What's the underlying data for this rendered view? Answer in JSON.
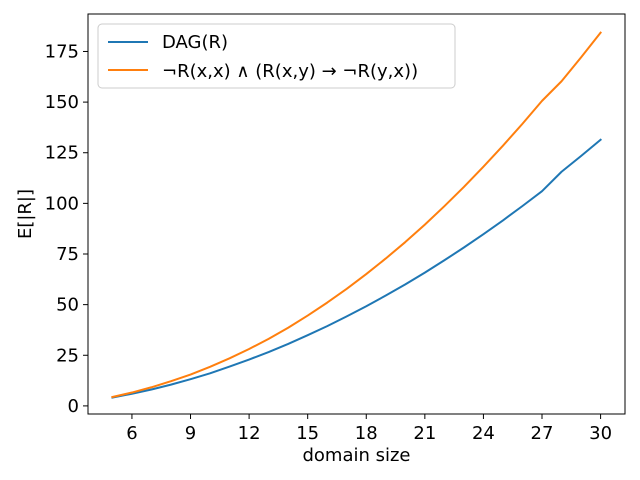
{
  "chart_data": {
    "type": "line",
    "xlabel": "domain size",
    "ylabel": "E[|R|]",
    "xlim": [
      3.75,
      31.25
    ],
    "ylim": [
      -4.0,
      193.5
    ],
    "xticks": [
      6,
      9,
      12,
      15,
      18,
      21,
      24,
      27,
      30
    ],
    "yticks": [
      0,
      25,
      50,
      75,
      100,
      125,
      150,
      175
    ],
    "grid": false,
    "legend": "top-left",
    "series": [
      {
        "name": "DAG(R)",
        "color": "#1f77b4",
        "x": [
          5,
          6,
          7,
          8,
          9,
          10,
          11,
          12,
          13,
          14,
          15,
          16,
          17,
          18,
          19,
          20,
          21,
          22,
          23,
          24,
          25,
          26,
          27,
          28,
          29,
          30
        ],
        "y": [
          4.1,
          6.0,
          8.1,
          10.5,
          13.2,
          16.1,
          19.4,
          22.9,
          26.6,
          30.6,
          34.9,
          39.4,
          44.2,
          49.2,
          54.5,
          60.0,
          65.8,
          71.9,
          78.2,
          84.8,
          91.6,
          98.7,
          106.0,
          115.6,
          123.4,
          131.4
        ]
      },
      {
        "name": "¬R(x,x) ∧ (R(x,y) → ¬R(y,x))",
        "color": "#ff7f0e",
        "x": [
          5,
          6,
          7,
          8,
          9,
          10,
          11,
          12,
          13,
          14,
          15,
          16,
          17,
          18,
          19,
          20,
          21,
          22,
          23,
          24,
          25,
          26,
          27,
          28,
          29,
          30
        ],
        "y": [
          4.4,
          6.6,
          9.2,
          12.2,
          15.5,
          19.3,
          23.5,
          28.1,
          33.1,
          38.6,
          44.6,
          51.0,
          57.8,
          65.1,
          72.8,
          80.9,
          89.5,
          98.6,
          108.1,
          118.1,
          128.5,
          139.3,
          150.6,
          160.3,
          172.1,
          184.3
        ]
      }
    ]
  }
}
